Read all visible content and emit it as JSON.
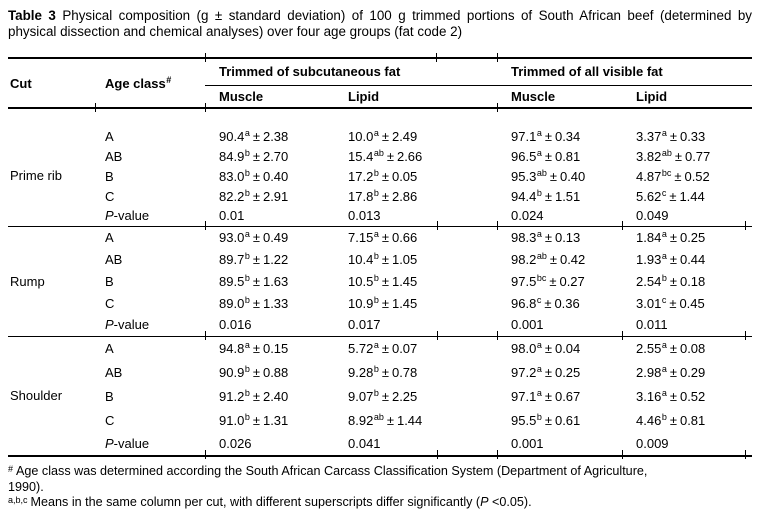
{
  "colors": {
    "text": "#000000",
    "background": "#ffffff",
    "rule": "#000000"
  },
  "symbols": {
    "pm": "±"
  },
  "title": {
    "tag": "Table 3",
    "text": "Physical composition (g ± standard deviation) of 100 g trimmed portions of South African beef (determined by physical dissection and chemical analyses) over four age groups (fat code 2)"
  },
  "header": {
    "cut": "Cut",
    "age_class": "Age class",
    "age_class_sup": "#",
    "groups": [
      "Trimmed of subcutaneous fat",
      "Trimmed of all visible fat"
    ],
    "subcols": [
      "Muscle",
      "Lipid",
      "Muscle",
      "Lipid"
    ]
  },
  "labels": {
    "pvalue_p": "P",
    "pvalue_suffix": "-value"
  },
  "sections": [
    {
      "cut": "Prime rib",
      "rows": [
        {
          "age": "A",
          "cells": [
            {
              "mean": "90.4",
              "sup": "a",
              "sd": "2.38"
            },
            {
              "mean": "10.0",
              "sup": "a",
              "sd": "2.49"
            },
            {
              "mean": "97.1",
              "sup": "a",
              "sd": "0.34"
            },
            {
              "mean": "3.37",
              "sup": "a",
              "sd": "0.33"
            }
          ]
        },
        {
          "age": "AB",
          "cells": [
            {
              "mean": "84.9",
              "sup": "b",
              "sd": "2.70"
            },
            {
              "mean": "15.4",
              "sup": "ab",
              "sd": "2.66"
            },
            {
              "mean": "96.5",
              "sup": "a",
              "sd": "0.81"
            },
            {
              "mean": "3.82",
              "sup": "ab",
              "sd": "0.77"
            }
          ]
        },
        {
          "age": "B",
          "cells": [
            {
              "mean": "83.0",
              "sup": "b",
              "sd": "0.40"
            },
            {
              "mean": "17.2",
              "sup": "b",
              "sd": "0.05"
            },
            {
              "mean": "95.3",
              "sup": "ab",
              "sd": "0.40"
            },
            {
              "mean": "4.87",
              "sup": "bc",
              "sd": "0.52"
            }
          ]
        },
        {
          "age": "C",
          "cells": [
            {
              "mean": "82.2",
              "sup": "b",
              "sd": "2.91"
            },
            {
              "mean": "17.8",
              "sup": "b",
              "sd": "2.86"
            },
            {
              "mean": "94.4",
              "sup": "b",
              "sd": "1.51"
            },
            {
              "mean": "5.62",
              "sup": "c",
              "sd": "1.44"
            }
          ]
        },
        {
          "age": "P-value",
          "pvalue": true,
          "pvalues": [
            "0.01",
            "0.013",
            "0.024",
            "0.049"
          ]
        }
      ]
    },
    {
      "cut": "Rump",
      "rows": [
        {
          "age": "A",
          "cells": [
            {
              "mean": "93.0",
              "sup": "a",
              "sd": "0.49"
            },
            {
              "mean": "7.15",
              "sup": "a",
              "sd": "0.66"
            },
            {
              "mean": "98.3",
              "sup": "a",
              "sd": "0.13"
            },
            {
              "mean": "1.84",
              "sup": "a",
              "sd": "0.25"
            }
          ]
        },
        {
          "age": "AB",
          "cells": [
            {
              "mean": "89.7",
              "sup": "b",
              "sd": "1.22"
            },
            {
              "mean": "10.4",
              "sup": "b",
              "sd": "1.05"
            },
            {
              "mean": "98.2",
              "sup": "ab",
              "sd": "0.42"
            },
            {
              "mean": "1.93",
              "sup": "a",
              "sd": "0.44"
            }
          ]
        },
        {
          "age": "B",
          "cells": [
            {
              "mean": "89.5",
              "sup": "b",
              "sd": "1.63"
            },
            {
              "mean": "10.5",
              "sup": "b",
              "sd": "1.45"
            },
            {
              "mean": "97.5",
              "sup": "bc",
              "sd": "0.27"
            },
            {
              "mean": "2.54",
              "sup": "b",
              "sd": "0.18"
            }
          ]
        },
        {
          "age": "C",
          "cells": [
            {
              "mean": "89.0",
              "sup": "b",
              "sd": "1.33"
            },
            {
              "mean": "10.9",
              "sup": "b",
              "sd": "1.45"
            },
            {
              "mean": "96.8",
              "sup": "c",
              "sd": "0.36"
            },
            {
              "mean": "3.01",
              "sup": "c",
              "sd": "0.45"
            }
          ]
        },
        {
          "age": "P-value",
          "pvalue": true,
          "pvalues": [
            "0.016",
            "0.017",
            "0.001",
            "0.011"
          ]
        }
      ]
    },
    {
      "cut": "Shoulder",
      "rows": [
        {
          "age": "A",
          "cells": [
            {
              "mean": "94.8",
              "sup": "a",
              "sd": "0.15"
            },
            {
              "mean": "5.72",
              "sup": "a",
              "sd": "0.07"
            },
            {
              "mean": "98.0",
              "sup": "a",
              "sd": "0.04"
            },
            {
              "mean": "2.55",
              "sup": "a",
              "sd": "0.08"
            }
          ]
        },
        {
          "age": "AB",
          "cells": [
            {
              "mean": "90.9",
              "sup": "b",
              "sd": "0.88"
            },
            {
              "mean": "9.28",
              "sup": "b",
              "sd": "0.78"
            },
            {
              "mean": "97.2",
              "sup": "a",
              "sd": "0.25"
            },
            {
              "mean": "2.98",
              "sup": "a",
              "sd": "0.29"
            }
          ]
        },
        {
          "age": "B",
          "cells": [
            {
              "mean": "91.2",
              "sup": "b",
              "sd": "2.40"
            },
            {
              "mean": "9.07",
              "sup": "b",
              "sd": "2.25"
            },
            {
              "mean": "97.1",
              "sup": "a",
              "sd": "0.67"
            },
            {
              "mean": "3.16",
              "sup": "a",
              "sd": "0.52"
            }
          ]
        },
        {
          "age": "C",
          "cells": [
            {
              "mean": "91.0",
              "sup": "b",
              "sd": "1.31"
            },
            {
              "mean": "8.92",
              "sup": "ab",
              "sd": "1.44"
            },
            {
              "mean": "95.5",
              "sup": "b",
              "sd": "0.61"
            },
            {
              "mean": "4.46",
              "sup": "b",
              "sd": "0.81"
            }
          ]
        },
        {
          "age": "P-value",
          "pvalue": true,
          "pvalues": [
            "0.026",
            "0.041",
            "0.001",
            "0.009"
          ]
        }
      ]
    }
  ],
  "footnotes": [
    {
      "sup": "#",
      "lines": [
        "Age class was determined according the South African Carcass Classification System (Department of Agriculture,",
        "1990)."
      ],
      "before": "",
      "p": "",
      "after": ""
    },
    {
      "sup": "a,b,c",
      "lines": [],
      "before": "Means in the same column per cut, with different superscripts differ significantly (",
      "p": "P",
      "after": " <0.05)."
    }
  ]
}
